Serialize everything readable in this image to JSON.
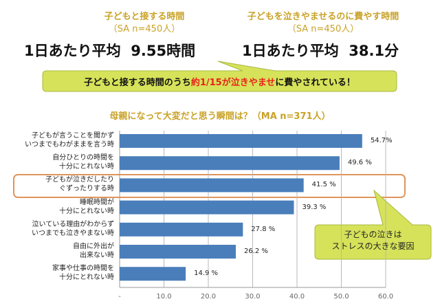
{
  "left_stat": {
    "title": "子どもと接する時間",
    "sample": "（SA n=450人）",
    "label": "1日あたり平均",
    "value": "9.55時間"
  },
  "right_stat": {
    "title": "子どもを泣きやませるのに費やす時間",
    "sample": "（SA n=450人）",
    "label": "1日あたり平均",
    "value": "38.1分"
  },
  "callout_top": {
    "part1": "子どもと接する時間のうち",
    "highlight": "約1/15が泣きやませ",
    "part2": "に費やされている！",
    "highlight_color": "#e8231b",
    "bg": "#d6e25a"
  },
  "callout_chart": {
    "line1": "子どもの泣きは",
    "line2": "ストレスの大きな要因"
  },
  "chart_data": {
    "type": "bar",
    "orientation": "horizontal",
    "title": "母親になって大変だと思う瞬間は？（MA n=371人）",
    "categories": [
      [
        "子どもが言うことを聞かず",
        "いつまでもわがままを言う時"
      ],
      [
        "自分ひとりの時間を",
        "十分にとれない時"
      ],
      [
        "子どもが泣きだしたり",
        "ぐずったりする時"
      ],
      [
        "睡眠時間が",
        "十分にとれない時"
      ],
      [
        "泣いている理由がわからず",
        "いつまでも泣きやまない時"
      ],
      [
        "自由に外出が",
        "出来ない時"
      ],
      [
        "家事や仕事の時間を",
        "十分にとれない時"
      ]
    ],
    "values": [
      54.7,
      49.6,
      41.5,
      39.3,
      27.8,
      26.2,
      14.9
    ],
    "value_labels": [
      "54.7%",
      "49.6 %",
      "41.5 %",
      "39.3 %",
      "27.8 %",
      "26.2 %",
      "14.9 %"
    ],
    "xlim": [
      0,
      60
    ],
    "tick_labels": [
      "-",
      "10.0",
      "20.0",
      "30.0",
      "40.0",
      "50.0",
      "60.0"
    ],
    "grid": true,
    "highlighted_index": 2,
    "bar_color": "#4a7ebb",
    "highlight_color": "#e0945a"
  }
}
